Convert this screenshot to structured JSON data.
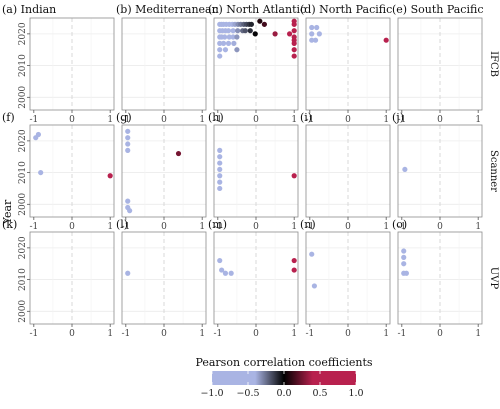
{
  "figure": {
    "y_axis_label": "Year",
    "x_ticks": [
      -1,
      0,
      1
    ],
    "y_ticks": [
      2000,
      2010,
      2020
    ],
    "colorbar": {
      "title": "Pearson correlation coefficients",
      "range": [
        -1,
        1
      ],
      "ticks": [
        -1.0,
        -0.5,
        0.0,
        0.5,
        1.0
      ],
      "tick_labels": [
        "−1.0",
        "−0.5",
        "0.0",
        "0.5",
        "1.0"
      ],
      "colors": {
        "low": "#a9b4e3",
        "mid": "#000000",
        "high": "#b8214e"
      }
    }
  },
  "chart_data": {
    "type": "scatter",
    "xlim": [
      -1.1,
      1.1
    ],
    "ylim": [
      1996,
      2025
    ],
    "columns": [
      "(a)  Indian",
      "(b)  Mediterranean",
      "(c)  North Atlantic",
      "(d)  North Pacific",
      "(e)  South Pacific"
    ],
    "rows": [
      "IFCB",
      "Scanner",
      "UVP"
    ],
    "panels": [
      {
        "label": "(a)",
        "column": "Indian",
        "row": "IFCB",
        "points": []
      },
      {
        "label": "(b)",
        "column": "Mediterranean",
        "row": "IFCB",
        "points": []
      },
      {
        "label": "(c)",
        "column": "North Atlantic",
        "row": "IFCB",
        "points": [
          {
            "x": -0.95,
            "y": 2023
          },
          {
            "x": -0.9,
            "y": 2023
          },
          {
            "x": -0.85,
            "y": 2023
          },
          {
            "x": -0.78,
            "y": 2023
          },
          {
            "x": -0.7,
            "y": 2023
          },
          {
            "x": -0.62,
            "y": 2023
          },
          {
            "x": -0.55,
            "y": 2023
          },
          {
            "x": -0.47,
            "y": 2023
          },
          {
            "x": -0.4,
            "y": 2023
          },
          {
            "x": -0.32,
            "y": 2023
          },
          {
            "x": -0.25,
            "y": 2023
          },
          {
            "x": -0.18,
            "y": 2023
          },
          {
            "x": -0.12,
            "y": 2023
          },
          {
            "x": 0.1,
            "y": 2024
          },
          {
            "x": 0.22,
            "y": 2023
          },
          {
            "x": 0.5,
            "y": 2020
          },
          {
            "x": -0.15,
            "y": 2021
          },
          {
            "x": -0.02,
            "y": 2020
          },
          {
            "x": -0.95,
            "y": 2021
          },
          {
            "x": -0.88,
            "y": 2021
          },
          {
            "x": -0.8,
            "y": 2021
          },
          {
            "x": -0.72,
            "y": 2021
          },
          {
            "x": -0.6,
            "y": 2021
          },
          {
            "x": -0.48,
            "y": 2021
          },
          {
            "x": -0.35,
            "y": 2021
          },
          {
            "x": -0.28,
            "y": 2021
          },
          {
            "x": -0.95,
            "y": 2019
          },
          {
            "x": -0.9,
            "y": 2019
          },
          {
            "x": -0.82,
            "y": 2019
          },
          {
            "x": -0.7,
            "y": 2019
          },
          {
            "x": -0.6,
            "y": 2019
          },
          {
            "x": -0.5,
            "y": 2019
          },
          {
            "x": -0.95,
            "y": 2017
          },
          {
            "x": -0.85,
            "y": 2017
          },
          {
            "x": -0.72,
            "y": 2017
          },
          {
            "x": -0.58,
            "y": 2017
          },
          {
            "x": -0.95,
            "y": 2015
          },
          {
            "x": -0.8,
            "y": 2015
          },
          {
            "x": -0.5,
            "y": 2015
          },
          {
            "x": -0.95,
            "y": 2013
          },
          {
            "x": 1.0,
            "y": 2024
          },
          {
            "x": 1.0,
            "y": 2023
          },
          {
            "x": 1.0,
            "y": 2021
          },
          {
            "x": 0.88,
            "y": 2020
          },
          {
            "x": 1.0,
            "y": 2019
          },
          {
            "x": 1.0,
            "y": 2018
          },
          {
            "x": 1.0,
            "y": 2017
          },
          {
            "x": 1.0,
            "y": 2015
          },
          {
            "x": 1.0,
            "y": 2013
          }
        ]
      },
      {
        "label": "(d)",
        "column": "North Pacific",
        "row": "IFCB",
        "points": [
          {
            "x": -0.95,
            "y": 2022
          },
          {
            "x": -0.82,
            "y": 2022
          },
          {
            "x": -0.95,
            "y": 2020
          },
          {
            "x": -0.75,
            "y": 2020
          },
          {
            "x": -0.95,
            "y": 2018
          },
          {
            "x": -0.85,
            "y": 2018
          },
          {
            "x": 1.0,
            "y": 2018
          }
        ]
      },
      {
        "label": "(e)",
        "column": "South Pacific",
        "row": "IFCB",
        "points": []
      },
      {
        "label": "(f)",
        "column": "Indian",
        "row": "Scanner",
        "points": [
          {
            "x": -0.95,
            "y": 2021
          },
          {
            "x": -0.88,
            "y": 2022
          },
          {
            "x": -0.82,
            "y": 2010
          },
          {
            "x": 1.0,
            "y": 2009
          }
        ]
      },
      {
        "label": "(g)",
        "column": "Mediterranean",
        "row": "Scanner",
        "points": [
          {
            "x": -0.95,
            "y": 2023
          },
          {
            "x": -0.95,
            "y": 2021
          },
          {
            "x": -0.95,
            "y": 2019
          },
          {
            "x": -0.95,
            "y": 2017
          },
          {
            "x": -0.95,
            "y": 2001
          },
          {
            "x": -0.95,
            "y": 1999
          },
          {
            "x": -0.9,
            "y": 1998
          },
          {
            "x": 0.38,
            "y": 2016
          }
        ]
      },
      {
        "label": "(h)",
        "column": "North Atlantic",
        "row": "Scanner",
        "points": [
          {
            "x": -0.95,
            "y": 2017
          },
          {
            "x": -0.95,
            "y": 2015
          },
          {
            "x": -0.95,
            "y": 2013
          },
          {
            "x": -0.95,
            "y": 2011
          },
          {
            "x": -0.95,
            "y": 2009
          },
          {
            "x": -0.95,
            "y": 2007
          },
          {
            "x": -0.95,
            "y": 2005
          },
          {
            "x": 1.0,
            "y": 2009
          }
        ]
      },
      {
        "label": "(i)",
        "column": "North Pacific",
        "row": "Scanner",
        "points": []
      },
      {
        "label": "(j)",
        "column": "South Pacific",
        "row": "Scanner",
        "points": [
          {
            "x": -0.92,
            "y": 2011
          }
        ]
      },
      {
        "label": "(k)",
        "column": "Indian",
        "row": "UVP",
        "points": []
      },
      {
        "label": "(l)",
        "column": "Mediterranean",
        "row": "UVP",
        "points": [
          {
            "x": -0.95,
            "y": 2012
          }
        ]
      },
      {
        "label": "(m)",
        "column": "North Atlantic",
        "row": "UVP",
        "points": [
          {
            "x": -0.95,
            "y": 2016
          },
          {
            "x": -0.9,
            "y": 2013
          },
          {
            "x": -0.8,
            "y": 2012
          },
          {
            "x": -0.65,
            "y": 2012
          },
          {
            "x": 1.0,
            "y": 2016
          },
          {
            "x": 1.0,
            "y": 2013
          }
        ]
      },
      {
        "label": "(n)",
        "column": "North Pacific",
        "row": "UVP",
        "points": [
          {
            "x": -0.95,
            "y": 2018
          },
          {
            "x": -0.88,
            "y": 2008
          }
        ]
      },
      {
        "label": "(o)",
        "column": "South Pacific",
        "row": "UVP",
        "points": [
          {
            "x": -0.95,
            "y": 2019
          },
          {
            "x": -0.95,
            "y": 2017
          },
          {
            "x": -0.95,
            "y": 2015
          },
          {
            "x": -0.95,
            "y": 2012
          },
          {
            "x": -0.88,
            "y": 2012
          }
        ]
      }
    ]
  }
}
